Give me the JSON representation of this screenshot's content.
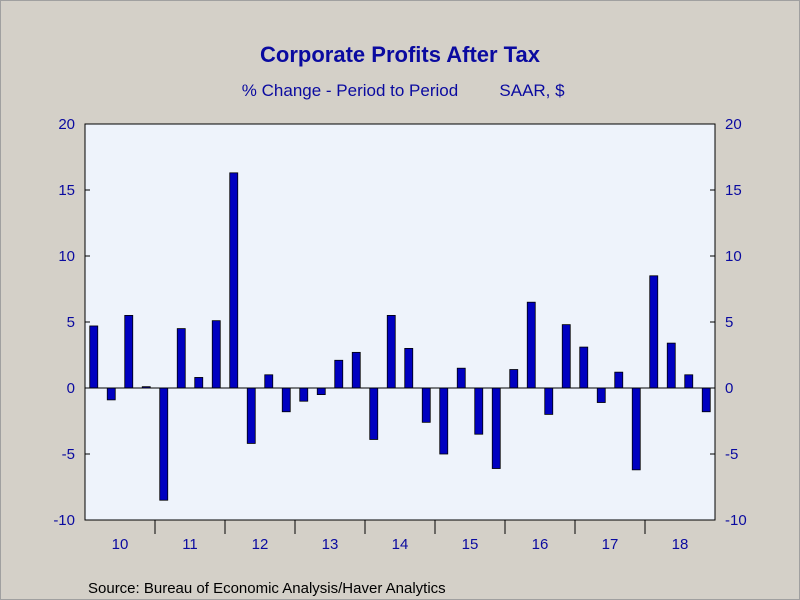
{
  "chart_data": {
    "type": "bar",
    "title": "Corporate Profits After Tax",
    "subtitle_left": "% Change - Period to Period",
    "subtitle_right": "SAAR, $",
    "source": "Source:  Bureau of Economic Analysis/Haver Analytics",
    "ylim": [
      -10,
      20
    ],
    "yticks": [
      20,
      15,
      10,
      5,
      0,
      -5,
      -10
    ],
    "y_axis_sides": "both",
    "grid": false,
    "legend": "none",
    "x_start_year": 2010,
    "x_year_labels": [
      "10",
      "11",
      "12",
      "13",
      "14",
      "15",
      "16",
      "17",
      "18"
    ],
    "categories": [
      "2010Q1",
      "2010Q2",
      "2010Q3",
      "2010Q4",
      "2011Q1",
      "2011Q2",
      "2011Q3",
      "2011Q4",
      "2012Q1",
      "2012Q2",
      "2012Q3",
      "2012Q4",
      "2013Q1",
      "2013Q2",
      "2013Q3",
      "2013Q4",
      "2014Q1",
      "2014Q2",
      "2014Q3",
      "2014Q4",
      "2015Q1",
      "2015Q2",
      "2015Q3",
      "2015Q4",
      "2016Q1",
      "2016Q2",
      "2016Q3",
      "2016Q4",
      "2017Q1",
      "2017Q2",
      "2017Q3",
      "2017Q4",
      "2018Q1",
      "2018Q2",
      "2018Q3",
      "2018Q4"
    ],
    "values": [
      4.7,
      -0.9,
      5.5,
      0.1,
      -8.5,
      4.5,
      0.8,
      5.1,
      16.3,
      -4.2,
      1.0,
      -1.8,
      -1.0,
      -0.5,
      2.1,
      2.7,
      -3.9,
      5.5,
      3.0,
      -2.6,
      -5.0,
      1.5,
      -3.5,
      -6.1,
      1.4,
      6.5,
      -2.0,
      4.8,
      3.1,
      -1.1,
      1.2,
      -6.2,
      8.5,
      3.4,
      1.0,
      -1.8
    ],
    "colors": {
      "bar_fill": "#0000c0",
      "bar_stroke": "#000000",
      "plot_background": "#eef3fb",
      "page_background": "#d4d0c8",
      "text": "#0a0aa0"
    }
  }
}
